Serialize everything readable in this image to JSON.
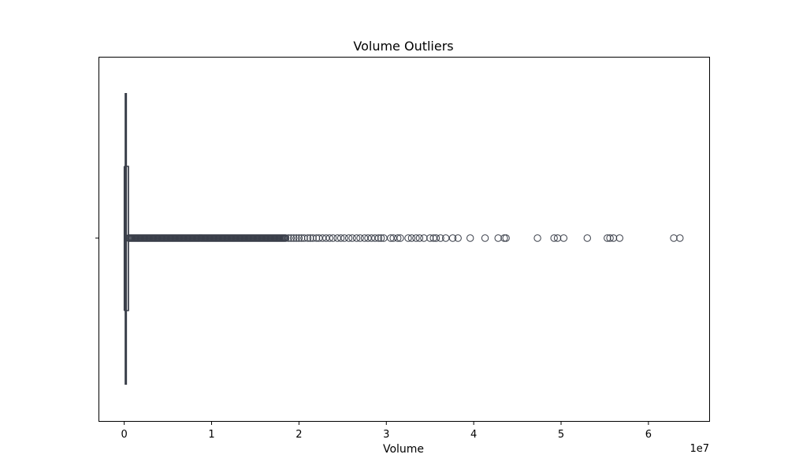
{
  "chart_data": {
    "type": "box",
    "title": "Volume Outliers",
    "xlabel": "Volume",
    "ylabel": "",
    "x_scale_label": "1e7",
    "xlim": [
      -2900000,
      67000000
    ],
    "xticks": [
      0,
      10000000,
      20000000,
      30000000,
      40000000,
      50000000,
      60000000
    ],
    "xtick_labels": [
      "0",
      "1",
      "2",
      "3",
      "4",
      "5",
      "6"
    ],
    "grid": false,
    "box": {
      "min": 0,
      "q1": 60000,
      "median": 180000,
      "q3": 480000,
      "whisker_low": 0,
      "whisker_high": 480000
    },
    "outlier_range_dense": [
      520000,
      18500000
    ],
    "outliers": [
      18800000,
      19100000,
      19400000,
      19700000,
      20000000,
      20300000,
      20600000,
      21000000,
      21300000,
      21600000,
      22000000,
      22300000,
      22700000,
      23100000,
      23500000,
      23900000,
      24400000,
      24800000,
      25200000,
      25700000,
      26100000,
      26600000,
      27000000,
      27500000,
      27900000,
      28300000,
      28700000,
      29100000,
      29400000,
      29700000,
      30500000,
      30800000,
      31300000,
      31600000,
      32500000,
      32900000,
      33400000,
      33800000,
      34300000,
      35000000,
      35400000,
      35700000,
      36200000,
      36800000,
      37600000,
      38200000,
      39600000,
      41300000,
      42800000,
      43500000,
      43700000,
      47300000,
      49200000,
      49600000,
      50300000,
      53000000,
      55300000,
      55600000,
      56000000,
      56700000,
      62900000,
      63600000
    ],
    "colors": {
      "line": "#3a3f4a",
      "background": "#ffffff"
    }
  }
}
